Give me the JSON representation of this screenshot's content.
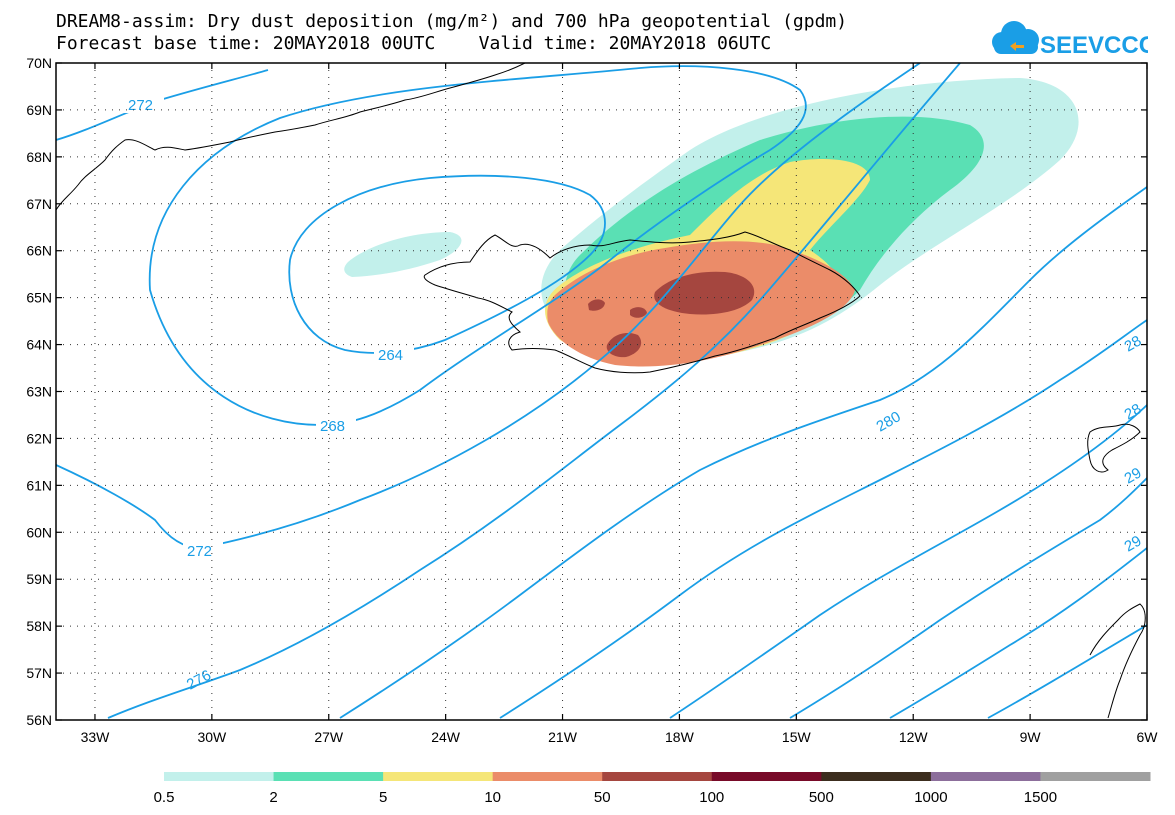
{
  "title_line1": "DREAM8-assim: Dry dust deposition (mg/m²) and 700 hPa geopotential (gpdm)",
  "title_line2": "Forecast base time: 20MAY2018 00UTC    Valid time: 20MAY2018 06UTC",
  "logo_text": "SEEVCCC",
  "map": {
    "lat_labels": [
      "70N",
      "69N",
      "68N",
      "67N",
      "66N",
      "65N",
      "64N",
      "63N",
      "62N",
      "61N",
      "60N",
      "59N",
      "58N",
      "57N",
      "56N"
    ],
    "lon_labels": [
      "33W",
      "30W",
      "27W",
      "24W",
      "21W",
      "18W",
      "15W",
      "12W",
      "9W",
      "6W"
    ],
    "contour_labels": [
      "272",
      "264",
      "268",
      "272",
      "276",
      "280",
      "28",
      "28",
      "29",
      "29"
    ],
    "contour_color": "#1a9ee6",
    "coast_color": "#000000"
  },
  "legend": {
    "labels": [
      "0.5",
      "2",
      "5",
      "10",
      "50",
      "100",
      "500",
      "1000",
      "1500"
    ],
    "colors": [
      "#c2f0eb",
      "#5ae0b4",
      "#f5e678",
      "#eb8c69",
      "#a5463f",
      "#780a28",
      "#3c2d1e",
      "#8c6e9b",
      "#a0a0a0"
    ]
  }
}
